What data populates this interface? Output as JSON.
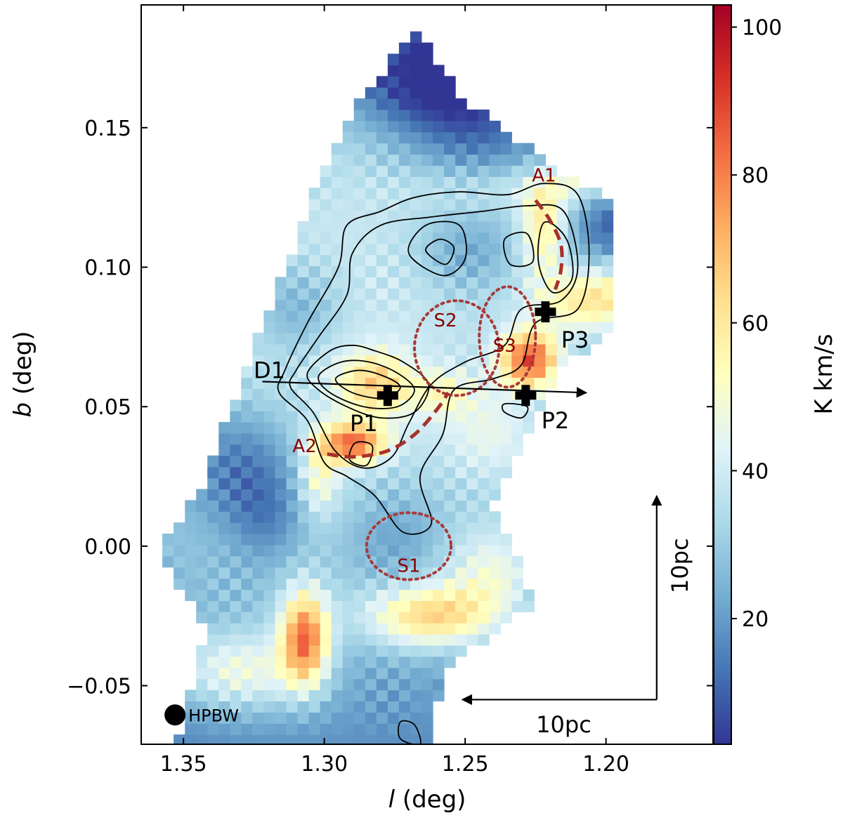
{
  "chart_data": {
    "type": "heatmap",
    "title": "",
    "xlabel_var": "l",
    "xlabel_unit": " (deg)",
    "ylabel_var": "b",
    "ylabel_unit": " (deg)",
    "xlim": [
      1.365,
      1.162
    ],
    "ylim": [
      -0.071,
      0.194
    ],
    "x_ticks": [
      1.35,
      1.3,
      1.25,
      1.2
    ],
    "x_tick_labels": [
      "1.35",
      "1.30",
      "1.25",
      "1.20"
    ],
    "y_ticks": [
      -0.05,
      0.0,
      0.05,
      0.1,
      0.15
    ],
    "y_tick_labels": [
      "−0.05",
      "0.00",
      "0.05",
      "0.10",
      "0.15"
    ],
    "grid": false,
    "colorbar": {
      "label": "K km/s",
      "colormap": "RdYlBu_r",
      "vmin": 3,
      "vmax": 103,
      "ticks": [
        20,
        40,
        60,
        80,
        100
      ],
      "tick_labels": [
        "20",
        "40",
        "60",
        "80",
        "100"
      ]
    },
    "grid_spec": {
      "l_start": 1.3635,
      "l_step": -0.004,
      "n_l": 42,
      "b_start": -0.0695,
      "b_step": 0.004,
      "n_b": 65
    },
    "coverage_polygon": [
      [
        1.352,
        -0.071
      ],
      [
        1.342,
        -0.03
      ],
      [
        1.36,
        0.0
      ],
      [
        1.345,
        0.018
      ],
      [
        1.318,
        0.09
      ],
      [
        1.303,
        0.128
      ],
      [
        1.29,
        0.155
      ],
      [
        1.268,
        0.186
      ],
      [
        1.25,
        0.16
      ],
      [
        1.208,
        0.128
      ],
      [
        1.165,
        0.118
      ],
      [
        1.167,
        0.1
      ],
      [
        1.18,
        0.087
      ],
      [
        1.215,
        0.065
      ],
      [
        1.24,
        0.015
      ],
      [
        1.225,
        -0.02
      ],
      [
        1.258,
        -0.045
      ],
      [
        1.262,
        -0.071
      ]
    ],
    "intensity_components": [
      {
        "l": 1.3,
        "b": 0.08,
        "sl": 0.12,
        "sb": 0.12,
        "amp": 40,
        "note": "background"
      },
      {
        "l": 1.265,
        "b": 0.17,
        "sl": 0.02,
        "sb": 0.015,
        "amp": -28,
        "note": "top blue"
      },
      {
        "l": 1.245,
        "b": 0.15,
        "sl": 0.018,
        "sb": 0.015,
        "amp": -15
      },
      {
        "l": 1.185,
        "b": 0.115,
        "sl": 0.02,
        "sb": 0.01,
        "amp": -22,
        "note": "right blue"
      },
      {
        "l": 1.33,
        "b": 0.03,
        "sl": 0.016,
        "sb": 0.016,
        "amp": -20,
        "note": "left blue"
      },
      {
        "l": 1.31,
        "b": 0.085,
        "sl": 0.012,
        "sb": 0.012,
        "amp": -14
      },
      {
        "l": 1.32,
        "b": 0.01,
        "sl": 0.01,
        "sb": 0.012,
        "amp": -12
      },
      {
        "l": 1.275,
        "b": 0.005,
        "sl": 0.012,
        "sb": 0.012,
        "amp": -10
      },
      {
        "l": 1.25,
        "b": 0.105,
        "sl": 0.012,
        "sb": 0.01,
        "amp": -12
      },
      {
        "l": 1.282,
        "b": 0.058,
        "sl": 0.009,
        "sb": 0.008,
        "amp": 28,
        "note": "P1 region"
      },
      {
        "l": 1.258,
        "b": 0.055,
        "sl": 0.008,
        "sb": 0.006,
        "amp": 15
      },
      {
        "l": 1.227,
        "b": 0.067,
        "sl": 0.007,
        "sb": 0.007,
        "amp": 55,
        "note": "dark red near P2"
      },
      {
        "l": 1.205,
        "b": 0.088,
        "sl": 0.014,
        "sb": 0.008,
        "amp": 30,
        "note": "arc to the right"
      },
      {
        "l": 1.222,
        "b": 0.115,
        "sl": 0.006,
        "sb": 0.012,
        "amp": 30,
        "note": "A1"
      },
      {
        "l": 1.225,
        "b": 0.128,
        "sl": 0.03,
        "sb": 0.006,
        "amp": 10
      },
      {
        "l": 1.29,
        "b": 0.037,
        "sl": 0.008,
        "sb": 0.005,
        "amp": 48,
        "note": "A2"
      },
      {
        "l": 1.302,
        "b": 0.025,
        "sl": 0.005,
        "sb": 0.01,
        "amp": 20
      },
      {
        "l": 1.24,
        "b": 0.04,
        "sl": 0.012,
        "sb": 0.012,
        "amp": 12
      },
      {
        "l": 1.307,
        "b": -0.033,
        "sl": 0.006,
        "sb": 0.012,
        "amp": 55,
        "note": "bottom-left red"
      },
      {
        "l": 1.33,
        "b": -0.045,
        "sl": 0.016,
        "sb": 0.01,
        "amp": 25
      },
      {
        "l": 1.262,
        "b": -0.025,
        "sl": 0.016,
        "sb": 0.008,
        "amp": 38,
        "note": "bottom-middle red"
      },
      {
        "l": 1.24,
        "b": -0.01,
        "sl": 0.012,
        "sb": 0.012,
        "amp": 20
      },
      {
        "l": 1.21,
        "b": 0.135,
        "sl": 0.006,
        "sb": 0.006,
        "amp": 18
      },
      {
        "l": 1.19,
        "b": 0.095,
        "sl": 0.01,
        "sb": 0.008,
        "amp": 10
      }
    ],
    "contours": [
      {
        "level": 1,
        "points": [
          [
            1.314,
            0.063
          ],
          [
            1.306,
            0.08
          ],
          [
            1.295,
            0.1
          ],
          [
            1.292,
            0.115
          ],
          [
            1.28,
            0.12
          ],
          [
            1.268,
            0.125
          ],
          [
            1.252,
            0.127
          ],
          [
            1.235,
            0.126
          ],
          [
            1.222,
            0.13
          ],
          [
            1.21,
            0.126
          ],
          [
            1.206,
            0.105
          ],
          [
            1.21,
            0.085
          ],
          [
            1.225,
            0.08
          ],
          [
            1.23,
            0.065
          ],
          [
            1.24,
            0.06
          ],
          [
            1.254,
            0.056
          ],
          [
            1.258,
            0.04
          ],
          [
            1.266,
            0.025
          ],
          [
            1.262,
            0.008
          ],
          [
            1.272,
            0.005
          ],
          [
            1.282,
            0.018
          ],
          [
            1.292,
            0.025
          ],
          [
            1.3,
            0.03
          ],
          [
            1.306,
            0.045
          ],
          [
            1.316,
            0.055
          ]
        ]
      },
      {
        "level": 2,
        "points": [
          [
            1.31,
            0.063
          ],
          [
            1.302,
            0.075
          ],
          [
            1.292,
            0.09
          ],
          [
            1.29,
            0.105
          ],
          [
            1.28,
            0.115
          ],
          [
            1.262,
            0.118
          ],
          [
            1.244,
            0.12
          ],
          [
            1.228,
            0.122
          ],
          [
            1.215,
            0.12
          ],
          [
            1.21,
            0.1
          ],
          [
            1.216,
            0.088
          ],
          [
            1.23,
            0.085
          ],
          [
            1.236,
            0.072
          ],
          [
            1.25,
            0.066
          ],
          [
            1.262,
            0.058
          ],
          [
            1.27,
            0.044
          ],
          [
            1.276,
            0.032
          ],
          [
            1.286,
            0.028
          ],
          [
            1.296,
            0.034
          ],
          [
            1.304,
            0.048
          ],
          [
            1.312,
            0.057
          ]
        ]
      },
      {
        "level": 3,
        "points": [
          [
            1.306,
            0.062
          ],
          [
            1.298,
            0.07
          ],
          [
            1.29,
            0.072
          ],
          [
            1.282,
            0.07
          ],
          [
            1.272,
            0.066
          ],
          [
            1.263,
            0.058
          ],
          [
            1.268,
            0.048
          ],
          [
            1.28,
            0.046
          ],
          [
            1.292,
            0.05
          ],
          [
            1.302,
            0.056
          ]
        ]
      },
      {
        "level": 4,
        "points": [
          [
            1.302,
            0.061
          ],
          [
            1.294,
            0.066
          ],
          [
            1.284,
            0.066
          ],
          [
            1.274,
            0.062
          ],
          [
            1.268,
            0.056
          ],
          [
            1.274,
            0.05
          ],
          [
            1.286,
            0.05
          ],
          [
            1.298,
            0.055
          ]
        ]
      },
      {
        "level": 5,
        "points": [
          [
            1.296,
            0.06
          ],
          [
            1.288,
            0.063
          ],
          [
            1.279,
            0.061
          ],
          [
            1.273,
            0.057
          ],
          [
            1.279,
            0.053
          ],
          [
            1.29,
            0.055
          ]
        ]
      },
      {
        "level": 2,
        "points": [
          [
            1.27,
            0.105
          ],
          [
            1.264,
            0.115
          ],
          [
            1.252,
            0.115
          ],
          [
            1.25,
            0.103
          ],
          [
            1.258,
            0.097
          ]
        ]
      },
      {
        "level": 3,
        "points": [
          [
            1.264,
            0.106
          ],
          [
            1.259,
            0.11
          ],
          [
            1.254,
            0.107
          ],
          [
            1.257,
            0.101
          ]
        ]
      },
      {
        "level": 2,
        "points": [
          [
            1.222,
            0.116
          ],
          [
            1.214,
            0.11
          ],
          [
            1.212,
            0.096
          ],
          [
            1.219,
            0.091
          ],
          [
            1.224,
            0.102
          ]
        ]
      },
      {
        "level": 2,
        "points": [
          [
            1.236,
            0.11
          ],
          [
            1.228,
            0.112
          ],
          [
            1.226,
            0.102
          ],
          [
            1.234,
            0.101
          ]
        ]
      },
      {
        "level": 1,
        "points": [
          [
            1.289,
            0.037
          ],
          [
            1.283,
            0.036
          ],
          [
            1.285,
            0.029
          ],
          [
            1.291,
            0.031
          ]
        ]
      },
      {
        "level": 1,
        "points": [
          [
            1.236,
            0.051
          ],
          [
            1.228,
            0.05
          ],
          [
            1.23,
            0.046
          ],
          [
            1.236,
            0.048
          ]
        ]
      },
      {
        "level": 1,
        "points": [
          [
            1.273,
            -0.069
          ],
          [
            1.266,
            -0.071
          ],
          [
            1.268,
            -0.064
          ],
          [
            1.273,
            -0.063
          ]
        ]
      }
    ],
    "annotations": {
      "peaks": [
        {
          "label": "P1",
          "l": 1.2775,
          "b": 0.054,
          "label_l": 1.286,
          "label_b": 0.044
        },
        {
          "label": "P2",
          "l": 1.2285,
          "b": 0.054,
          "label_l": 1.218,
          "label_b": 0.045
        },
        {
          "label": "P3",
          "l": 1.2215,
          "b": 0.084,
          "label_l": 1.211,
          "label_b": 0.074
        }
      ],
      "shells": [
        {
          "label": "S1",
          "l": 1.27,
          "b": 0.0,
          "rl": 0.015,
          "rb": 0.012,
          "label_l": 1.27,
          "label_b": -0.007
        },
        {
          "label": "S2",
          "l": 1.253,
          "b": 0.071,
          "rl": 0.015,
          "rb": 0.017,
          "label_l": 1.257,
          "label_b": 0.081
        },
        {
          "label": "S3",
          "l": 1.235,
          "b": 0.075,
          "rl": 0.01,
          "rb": 0.018,
          "label_l": 1.236,
          "label_b": 0.072
        }
      ],
      "arcs": [
        {
          "label": "A1",
          "label_l": 1.222,
          "label_b": 0.133,
          "points": [
            [
              1.225,
              0.124
            ],
            [
              1.22,
              0.117
            ],
            [
              1.216,
              0.108
            ],
            [
              1.216,
              0.099
            ],
            [
              1.218,
              0.092
            ]
          ]
        },
        {
          "label": "A2",
          "label_l": 1.307,
          "label_b": 0.036,
          "points": [
            [
              1.299,
              0.033
            ],
            [
              1.29,
              0.032
            ],
            [
              1.278,
              0.034
            ],
            [
              1.268,
              0.04
            ],
            [
              1.26,
              0.049
            ],
            [
              1.256,
              0.055
            ]
          ]
        }
      ],
      "direction": {
        "label": "D1",
        "label_l": 1.3195,
        "label_b": 0.063,
        "from": [
          1.322,
          0.059
        ],
        "to": [
          1.207,
          0.055
        ]
      },
      "scalebar_x": {
        "label": "10pc",
        "from": [
          1.182,
          -0.055
        ],
        "to": [
          1.251,
          -0.055
        ],
        "label_l": 1.215,
        "label_b": -0.064
      },
      "scalebar_y": {
        "label": "10pc",
        "from": [
          1.182,
          -0.055
        ],
        "to": [
          1.182,
          0.018
        ],
        "label_l": 1.171,
        "label_b": -0.007
      },
      "beam": {
        "label": "HPBW",
        "l": 1.353,
        "b": -0.0605
      }
    }
  }
}
